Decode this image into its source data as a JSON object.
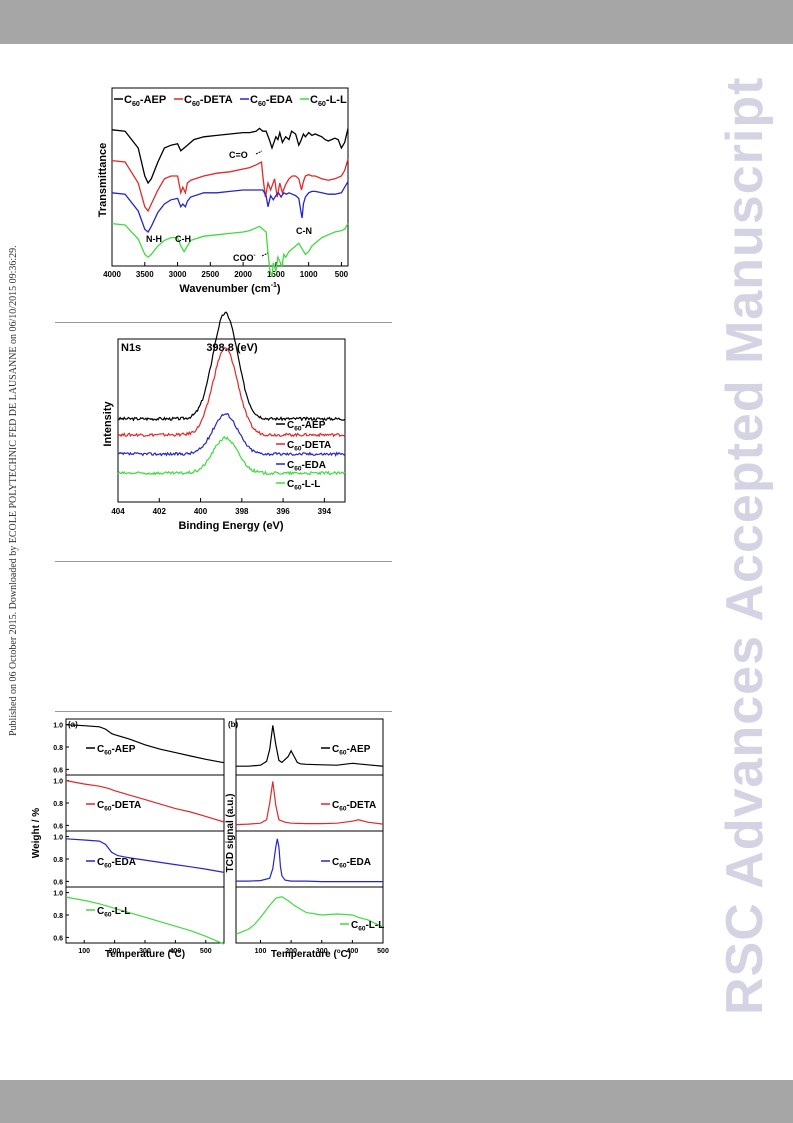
{
  "page": {
    "side_note": "Published on 06 October 2015. Downloaded by ECOLE POLYTECHNIC FED DE LAUSANNE on 06/10/2015 09:36:29.",
    "watermark": "RSC Advances Accepted Manuscript"
  },
  "colors": {
    "black": "#000000",
    "red": "#e0292a",
    "blue": "#2626c8",
    "green": "#3fdc3f"
  },
  "chart_data": [
    {
      "type": "line",
      "ylabel": "Transmittance",
      "xlabel_main": "Wavenumber (cm",
      "xlabel_sup": "-1",
      "xlabel_end": ")",
      "x_ticks": [
        "4000",
        "3500",
        "3000",
        "2500",
        "2000",
        "1500",
        "1000",
        "500"
      ],
      "xlim": [
        4000,
        400
      ],
      "legend": [
        {
          "name": "C60-AEP",
          "pre": "C",
          "sub": "60",
          "post": "-AEP",
          "color": "#000000"
        },
        {
          "name": "C60-DETA",
          "pre": "C",
          "sub": "60",
          "post": "-DETA",
          "color": "#e0292a"
        },
        {
          "name": "C60-EDA",
          "pre": "C",
          "sub": "60",
          "post": "-EDA",
          "color": "#2626c8"
        },
        {
          "name": "C60-L-L",
          "pre": "C",
          "sub": "60",
          "post": "-L-L",
          "color": "#3fdc3f"
        }
      ],
      "annotations": {
        "nh": "N-H",
        "ch": "C-H",
        "co": "C=O",
        "coo": "COO",
        "coo_sup": "-",
        "cn": "C-N"
      },
      "series": [
        {
          "name": "C60-AEP",
          "color": "#000000",
          "x": [
            4000,
            3800,
            3600,
            3500,
            3450,
            3400,
            3300,
            3200,
            3100,
            3000,
            2950,
            2900,
            2850,
            2750,
            2600,
            2400,
            2200,
            2000,
            1900,
            1800,
            1750,
            1700,
            1650,
            1600,
            1560,
            1500,
            1470,
            1440,
            1400,
            1350,
            1300,
            1260,
            1200,
            1150,
            1120,
            1080,
            1050,
            1000,
            950,
            900,
            850,
            800,
            750,
            700,
            650,
            600,
            550,
            500,
            450,
            400
          ],
          "y": [
            0.93,
            0.92,
            0.8,
            0.6,
            0.55,
            0.58,
            0.7,
            0.8,
            0.82,
            0.83,
            0.78,
            0.8,
            0.82,
            0.86,
            0.88,
            0.89,
            0.9,
            0.91,
            0.91,
            0.92,
            0.94,
            0.92,
            0.92,
            0.86,
            0.8,
            0.88,
            0.86,
            0.91,
            0.84,
            0.88,
            0.86,
            0.92,
            0.9,
            0.82,
            0.85,
            0.9,
            0.88,
            0.91,
            0.89,
            0.9,
            0.89,
            0.88,
            0.86,
            0.85,
            0.86,
            0.87,
            0.86,
            0.8,
            0.84,
            0.94
          ]
        },
        {
          "name": "C60-DETA",
          "color": "#e0292a",
          "x": [
            4000,
            3800,
            3600,
            3500,
            3450,
            3400,
            3300,
            3200,
            3100,
            3000,
            2950,
            2920,
            2880,
            2850,
            2800,
            2600,
            2400,
            2200,
            2000,
            1900,
            1800,
            1720,
            1700,
            1660,
            1620,
            1580,
            1520,
            1480,
            1440,
            1400,
            1350,
            1300,
            1250,
            1200,
            1150,
            1110,
            1080,
            1050,
            1000,
            950,
            900,
            850,
            800,
            700,
            600,
            500,
            450,
            400
          ],
          "y": [
            0.71,
            0.7,
            0.55,
            0.38,
            0.35,
            0.4,
            0.5,
            0.58,
            0.6,
            0.6,
            0.48,
            0.52,
            0.48,
            0.55,
            0.57,
            0.6,
            0.62,
            0.63,
            0.65,
            0.66,
            0.68,
            0.7,
            0.6,
            0.45,
            0.55,
            0.5,
            0.58,
            0.45,
            0.55,
            0.48,
            0.54,
            0.58,
            0.6,
            0.6,
            0.58,
            0.5,
            0.56,
            0.6,
            0.61,
            0.6,
            0.6,
            0.59,
            0.58,
            0.57,
            0.58,
            0.6,
            0.64,
            0.72
          ]
        },
        {
          "name": "C60-EDA",
          "color": "#2626c8",
          "x": [
            4000,
            3800,
            3600,
            3500,
            3450,
            3400,
            3300,
            3200,
            3100,
            3000,
            2950,
            2920,
            2880,
            2850,
            2800,
            2600,
            2400,
            2200,
            2000,
            1800,
            1700,
            1650,
            1620,
            1580,
            1540,
            1500,
            1460,
            1420,
            1380,
            1340,
            1300,
            1250,
            1200,
            1150,
            1120,
            1100,
            1080,
            1050,
            1000,
            950,
            900,
            800,
            700,
            600,
            500,
            450,
            400
          ],
          "y": [
            0.48,
            0.47,
            0.35,
            0.22,
            0.2,
            0.24,
            0.34,
            0.4,
            0.43,
            0.44,
            0.38,
            0.4,
            0.38,
            0.42,
            0.45,
            0.48,
            0.48,
            0.49,
            0.5,
            0.5,
            0.5,
            0.46,
            0.38,
            0.46,
            0.43,
            0.46,
            0.48,
            0.45,
            0.48,
            0.47,
            0.48,
            0.47,
            0.46,
            0.44,
            0.35,
            0.3,
            0.4,
            0.45,
            0.48,
            0.49,
            0.49,
            0.48,
            0.47,
            0.47,
            0.48,
            0.52,
            0.56
          ]
        },
        {
          "name": "C60-L-L",
          "color": "#3fdc3f",
          "x": [
            4000,
            3800,
            3600,
            3500,
            3450,
            3400,
            3300,
            3200,
            3100,
            3000,
            2950,
            2900,
            2850,
            2800,
            2600,
            2400,
            2200,
            2000,
            1900,
            1800,
            1750,
            1700,
            1650,
            1620,
            1590,
            1560,
            1540,
            1500,
            1470,
            1440,
            1410,
            1380,
            1350,
            1300,
            1250,
            1200,
            1150,
            1100,
            1050,
            1000,
            950,
            900,
            850,
            800,
            700,
            600,
            500,
            450,
            400
          ],
          "y": [
            0.26,
            0.25,
            0.15,
            0.04,
            0.02,
            0.04,
            0.1,
            0.14,
            0.16,
            0.16,
            0.1,
            0.06,
            0.1,
            0.14,
            0.17,
            0.18,
            0.19,
            0.2,
            0.21,
            0.23,
            0.24,
            0.22,
            0.2,
            0.05,
            -0.08,
            -0.12,
            -0.02,
            -0.08,
            0.02,
            -0.01,
            -0.05,
            0.04,
            0.02,
            0.06,
            0.08,
            0.1,
            0.12,
            0.08,
            0.04,
            0.06,
            0.1,
            0.12,
            0.14,
            0.16,
            0.18,
            0.2,
            0.21,
            0.22,
            0.26
          ]
        }
      ]
    },
    {
      "type": "line",
      "title": "N1s",
      "peak_label": "398.8 (eV)",
      "ylabel": "Intensity",
      "xlabel": "Binding Energy (eV)",
      "x_ticks": [
        "404",
        "402",
        "400",
        "398",
        "396",
        "394"
      ],
      "xlim": [
        404,
        393
      ],
      "legend": [
        {
          "name": "C60-AEP",
          "pre": "C",
          "sub": "60",
          "post": "-AEP",
          "color": "#000000"
        },
        {
          "name": "C60-DETA",
          "pre": "C",
          "sub": "60",
          "post": "-DETA",
          "color": "#e0292a"
        },
        {
          "name": "C60-EDA",
          "pre": "C",
          "sub": "60",
          "post": "-EDA",
          "color": "#2626c8"
        },
        {
          "name": "C60-L-L",
          "pre": "C",
          "sub": "60",
          "post": "-L-L",
          "color": "#3fdc3f"
        }
      ],
      "series": [
        {
          "name": "C60-AEP",
          "color": "#000000",
          "center": 398.8,
          "baseline": 0.52,
          "amplitude": 0.66,
          "width": 0.85
        },
        {
          "name": "C60-DETA",
          "color": "#e0292a",
          "center": 398.8,
          "baseline": 0.42,
          "amplitude": 0.54,
          "width": 0.85
        },
        {
          "name": "C60-EDA",
          "color": "#2626c8",
          "center": 398.8,
          "baseline": 0.3,
          "amplitude": 0.25,
          "width": 0.85
        },
        {
          "name": "C60-L-L",
          "color": "#3fdc3f",
          "center": 398.8,
          "baseline": 0.18,
          "amplitude": 0.22,
          "width": 0.85
        }
      ]
    },
    {
      "type": "line",
      "panel_label": "(a)",
      "ylabel": "Weight / %",
      "xlabel_main": "Temperature (",
      "xlabel_deg": "o",
      "xlabel_end": "C)",
      "x_ticks": [
        "100",
        "200",
        "300",
        "400",
        "500"
      ],
      "xlim": [
        40,
        560
      ],
      "y_ticks": [
        "1.0",
        "0.8",
        "0.6"
      ],
      "ylim": [
        0.55,
        1.05
      ],
      "panels": [
        {
          "name": "C60-AEP",
          "pre": "C",
          "sub": "60",
          "post": "-AEP",
          "color": "#000000",
          "x": [
            40,
            100,
            150,
            170,
            190,
            200,
            250,
            300,
            350,
            400,
            450,
            500,
            560
          ],
          "y": [
            1.0,
            0.99,
            0.98,
            0.96,
            0.92,
            0.91,
            0.87,
            0.82,
            0.78,
            0.75,
            0.72,
            0.69,
            0.66
          ]
        },
        {
          "name": "C60-DETA",
          "pre": "C",
          "sub": "60",
          "post": "-DETA",
          "color": "#e0292a",
          "x": [
            40,
            100,
            150,
            180,
            200,
            250,
            300,
            350,
            400,
            450,
            500,
            560
          ],
          "y": [
            1.0,
            0.97,
            0.95,
            0.93,
            0.91,
            0.87,
            0.83,
            0.79,
            0.75,
            0.72,
            0.68,
            0.63
          ]
        },
        {
          "name": "C60-EDA",
          "pre": "C",
          "sub": "60",
          "post": "-EDA",
          "color": "#2626c8",
          "x": [
            40,
            100,
            150,
            170,
            190,
            210,
            250,
            300,
            350,
            400,
            450,
            500,
            560
          ],
          "y": [
            0.98,
            0.97,
            0.96,
            0.93,
            0.86,
            0.83,
            0.81,
            0.79,
            0.77,
            0.75,
            0.73,
            0.71,
            0.68
          ]
        },
        {
          "name": "C60-L-L",
          "pre": "C",
          "sub": "60",
          "post": "-L-L",
          "color": "#3fdc3f",
          "x": [
            40,
            100,
            150,
            200,
            250,
            300,
            350,
            400,
            450,
            500,
            560
          ],
          "y": [
            0.96,
            0.93,
            0.9,
            0.86,
            0.82,
            0.78,
            0.74,
            0.7,
            0.66,
            0.61,
            0.54
          ]
        }
      ]
    },
    {
      "type": "line",
      "panel_label": "(b)",
      "ylabel": "TCD signal (a.u.)",
      "xlabel_main": "Temperature (",
      "xlabel_deg": "o",
      "xlabel_end": "C)",
      "x_ticks": [
        "100",
        "200",
        "300",
        "400",
        "500"
      ],
      "xlim": [
        20,
        500
      ],
      "panels": [
        {
          "name": "C60-AEP",
          "pre": "C",
          "sub": "60",
          "post": "-AEP",
          "color": "#000000",
          "x": [
            20,
            60,
            100,
            120,
            130,
            140,
            150,
            160,
            170,
            190,
            200,
            210,
            220,
            230,
            250,
            300,
            350,
            400,
            450,
            500
          ],
          "y": [
            0.1,
            0.1,
            0.12,
            0.2,
            0.45,
            0.95,
            0.55,
            0.22,
            0.18,
            0.3,
            0.42,
            0.3,
            0.18,
            0.15,
            0.14,
            0.13,
            0.12,
            0.16,
            0.13,
            0.1
          ]
        },
        {
          "name": "C60-DETA",
          "pre": "C",
          "sub": "60",
          "post": "-DETA",
          "color": "#e0292a",
          "x": [
            20,
            60,
            100,
            120,
            130,
            140,
            150,
            160,
            180,
            200,
            250,
            300,
            350,
            400,
            420,
            450,
            500
          ],
          "y": [
            0.05,
            0.06,
            0.08,
            0.15,
            0.5,
            0.95,
            0.45,
            0.15,
            0.1,
            0.08,
            0.07,
            0.07,
            0.08,
            0.12,
            0.15,
            0.1,
            0.06
          ]
        },
        {
          "name": "C60-EDA",
          "pre": "C",
          "sub": "60",
          "post": "-EDA",
          "color": "#2626c8",
          "x": [
            20,
            60,
            100,
            130,
            140,
            150,
            155,
            160,
            165,
            170,
            180,
            200,
            250,
            300,
            400,
            500
          ],
          "y": [
            0.04,
            0.04,
            0.05,
            0.1,
            0.3,
            0.75,
            0.92,
            0.75,
            0.35,
            0.15,
            0.06,
            0.04,
            0.04,
            0.03,
            0.03,
            0.03
          ]
        },
        {
          "name": "C60-L-L",
          "pre": "C",
          "sub": "60",
          "post": "-L-L",
          "color": "#3fdc3f",
          "x": [
            20,
            40,
            60,
            80,
            100,
            130,
            150,
            170,
            190,
            210,
            250,
            300,
            350,
            400,
            420,
            450,
            500
          ],
          "y": [
            0.1,
            0.15,
            0.2,
            0.3,
            0.45,
            0.7,
            0.85,
            0.88,
            0.8,
            0.7,
            0.55,
            0.5,
            0.52,
            0.5,
            0.45,
            0.4,
            0.25
          ]
        }
      ]
    }
  ]
}
